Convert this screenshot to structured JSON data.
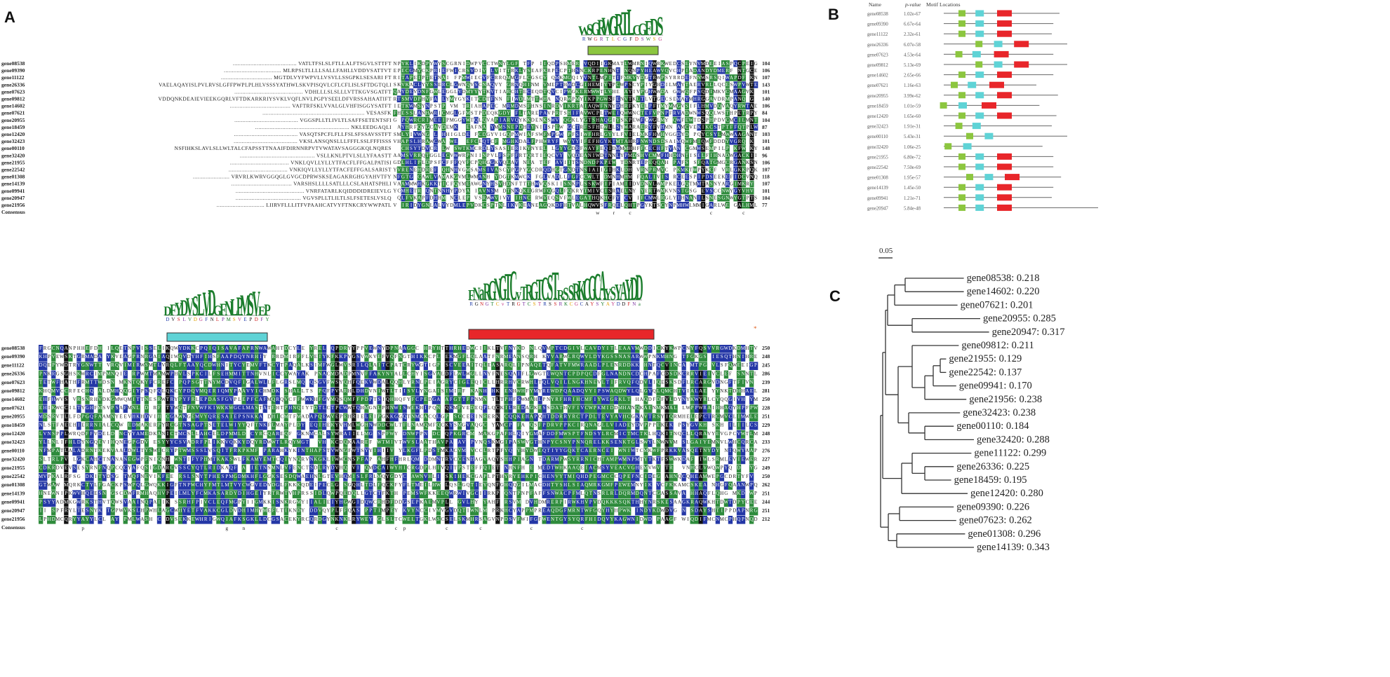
{
  "panels": {
    "a": "A",
    "b": "B",
    "c": "C"
  },
  "colors": {
    "green": "#2e8b3c",
    "blue": "#2437a6",
    "black": "#111111",
    "motif1": "#8cc63f",
    "motif2": "#5fd3d6",
    "motif3": "#e8262a"
  },
  "alignment": {
    "genes": [
      "gene08538",
      "gene09390",
      "gene11122",
      "gene26336",
      "gene07623",
      "gene09812",
      "gene14602",
      "gene07621",
      "gene20955",
      "gene18459",
      "gene12420",
      "gene32423",
      "gene00110",
      "gene32420",
      "gene21955",
      "gene22542",
      "gene01308",
      "gene14139",
      "gene09941",
      "gene20947",
      "gene21956"
    ],
    "consensus_label": "Consensus",
    "block1": {
      "leading": [
        "VATLTFSLSLFTLLALFTSGVLSTTFT",
        "MLRPSLTLLLLSALLFAHLLVDDVSATTVT",
        "MGTDLVYFWPVLLVSVLLSSGPKLSESARI FT",
        "VAELAQAYISLPVLRVSLGFFPWPLPLHLVSSSYATHWLSKVPISQVLCFLCFLISLSFTDGTQLI",
        "VDHLLLSLSLLLVTTKGVSGATFT",
        "VDDQNKDEAIEVIEEKGQRLVFTDKARKRIYSVKLVQFLNVLPGPYSEELDFVRSSAHAATIFT",
        "VAFTRFSKLVVALGLVHFISGGYSATFT",
        "VESASFK",
        "VGGSPLLTLIVLTLSAFFSETENTSFI",
        "NKLEEDGAQLI",
        "VASQTSPCFLFLLFSLSFSSAVSSTFT",
        "VKSLANSQNSLLLFFFLSSLFFFISSS",
        "NSFIHKSLAVLSLLWLTALCFAPSSTTNAAIFDIRNNRPVTVWATAVSAGGGKQLNQRES",
        "VSLLKNLPTVLSLLYFAASTT",
        "VNKLQVLLYLLYTFACFLFFGALPATISI",
        "VNKIQVLLYLLYTFACFEFFGALSARIST",
        "VRVRLKWRVGGQGLGVGCDPRWSKSEAGAKRGHGYAHVTFY",
        "VARSHSLLLLSATLLLCSLAHATSPHLI",
        "VNRFATARLKQIDDDIDREIEVLG",
        "VGVSPLLTLILTLSLFSETESLVSLQ",
        "LIIRVFLLLITFVPAAHCATVYFTNKCRYWWPATL"
      ],
      "counts": [
        "104",
        "106",
        "107",
        "143",
        "101",
        "140",
        "106",
        "84",
        "104",
        "87",
        "103",
        "101",
        "148",
        "96",
        "106",
        "107",
        "118",
        "107",
        "101",
        "104",
        "77"
      ],
      "consensus_marks": [
        "w",
        "r",
        "c",
        "c",
        "c"
      ]
    },
    "block2": {
      "counts": [
        "250",
        "248",
        "245",
        "286",
        "239",
        "281",
        "250",
        "228",
        "251",
        "229",
        "248",
        "233",
        "276",
        "227",
        "249",
        "250",
        "262",
        "251",
        "244",
        "251",
        "212"
      ],
      "consensus_marks": [
        "p",
        "g",
        "n",
        "c",
        "c",
        "p",
        "c",
        "c",
        "c",
        "c"
      ]
    },
    "motif_logos": {
      "motif1": "WSGRWGRTLCGFDS",
      "motif2": "DFYDVSLVDGFNLPMSVEP",
      "motif3": "FNaRGNGTCvTRGTCSTRSSRKCGCAYSYAYDD"
    }
  },
  "motif_table": {
    "headers": [
      "Name",
      "p-value",
      "Motif Locations"
    ],
    "rows": [
      {
        "name": "gene08538",
        "p": "1.02e-67",
        "m": [
          0.05,
          0.16,
          0.3
        ],
        "len": 0.75
      },
      {
        "name": "gene09390",
        "p": "6.67e-64",
        "m": [
          0.05,
          0.16,
          0.3
        ],
        "len": 0.71
      },
      {
        "name": "gene11122",
        "p": "2.32e-61",
        "m": [
          0.05,
          0.16,
          0.3
        ],
        "len": 0.7
      },
      {
        "name": "gene26336",
        "p": "6.07e-58",
        "m": [
          0.16,
          0.28,
          0.41
        ],
        "len": 0.8
      },
      {
        "name": "gene07623",
        "p": "4.53e-64",
        "m": [
          0.03,
          0.14,
          0.28
        ],
        "len": 0.71
      },
      {
        "name": "gene09812",
        "p": "5.13e-69",
        "m": [
          0.16,
          0.28,
          0.41
        ],
        "len": 0.8
      },
      {
        "name": "gene14602",
        "p": "2.65e-66",
        "m": [
          0.05,
          0.16,
          0.3
        ],
        "len": 0.71
      },
      {
        "name": "gene07621",
        "p": "1.16e-63",
        "m": [
          0.0,
          0.11,
          0.25
        ],
        "len": 0.6
      },
      {
        "name": "gene20955",
        "p": "3.99e-62",
        "m": [
          0.05,
          0.16,
          0.3
        ],
        "len": 0.74
      },
      {
        "name": "gene18459",
        "p": "1.01e-59",
        "m": [
          -0.07,
          0.05,
          0.2
        ],
        "len": 0.62
      },
      {
        "name": "gene12420",
        "p": "1.65e-60",
        "m": [
          0.05,
          0.16,
          0.3
        ],
        "len": 0.73
      },
      {
        "name": "gene32423",
        "p": "1.91e-31",
        "m": [
          0.03,
          0.14,
          null
        ],
        "len": 0.7
      },
      {
        "name": "gene00110",
        "p": "5.43e-31",
        "m": [
          0.1,
          0.22,
          null
        ],
        "len": 0.8
      },
      {
        "name": "gene32420",
        "p": "1.06e-25",
        "m": [
          -0.04,
          0.08,
          null
        ],
        "len": 0.64
      },
      {
        "name": "gene21955",
        "p": "6.80e-72",
        "m": [
          0.05,
          0.16,
          0.3
        ],
        "len": 0.71
      },
      {
        "name": "gene22542",
        "p": "7.50e-69",
        "m": [
          0.05,
          0.16,
          0.3
        ],
        "len": 0.71
      },
      {
        "name": "gene01308",
        "p": "1.95e-57",
        "m": [
          0.1,
          0.22,
          0.35
        ],
        "len": 0.76
      },
      {
        "name": "gene14139",
        "p": "1.45e-50",
        "m": [
          0.05,
          0.16,
          0.3
        ],
        "len": 0.71
      },
      {
        "name": "gene09941",
        "p": "1.21e-71",
        "m": [
          0.05,
          0.16,
          0.3
        ],
        "len": 0.7
      },
      {
        "name": "gene20947",
        "p": "5.84e-48",
        "m": [
          0.05,
          0.16,
          0.3
        ],
        "len": 1.0
      }
    ]
  },
  "tree": {
    "scale_label": "0.05",
    "leaves": [
      {
        "label": "gene08538: 0.218",
        "x": 0.52
      },
      {
        "label": "gene14602: 0.220",
        "x": 0.52
      },
      {
        "label": "gene07621: 0.201",
        "x": 0.47
      },
      {
        "label": "gene20955: 0.285",
        "x": 0.65
      },
      {
        "label": "gene20947: 0.317",
        "x": 0.72
      },
      {
        "label": "gene09812: 0.211",
        "x": 0.48
      },
      {
        "label": "gene21955: 0.129",
        "x": 0.38
      },
      {
        "label": "gene22542: 0.137",
        "x": 0.38
      },
      {
        "label": "gene09941: 0.170",
        "x": 0.46
      },
      {
        "label": "gene21956: 0.238",
        "x": 0.54
      },
      {
        "label": "gene32423: 0.238",
        "x": 0.49
      },
      {
        "label": "gene00110: 0.184",
        "x": 0.44
      },
      {
        "label": "gene32420: 0.288",
        "x": 0.6
      },
      {
        "label": "gene11122: 0.299",
        "x": 0.58
      },
      {
        "label": "gene26336: 0.225",
        "x": 0.44
      },
      {
        "label": "gene18459: 0.195",
        "x": 0.42
      },
      {
        "label": "gene12420: 0.280",
        "x": 0.55
      },
      {
        "label": "gene09390: 0.226",
        "x": 0.44
      },
      {
        "label": "gene07623: 0.262",
        "x": 0.46
      },
      {
        "label": "gene01308: 0.296",
        "x": 0.53
      },
      {
        "label": "gene14139: 0.343",
        "x": 0.6
      }
    ]
  }
}
